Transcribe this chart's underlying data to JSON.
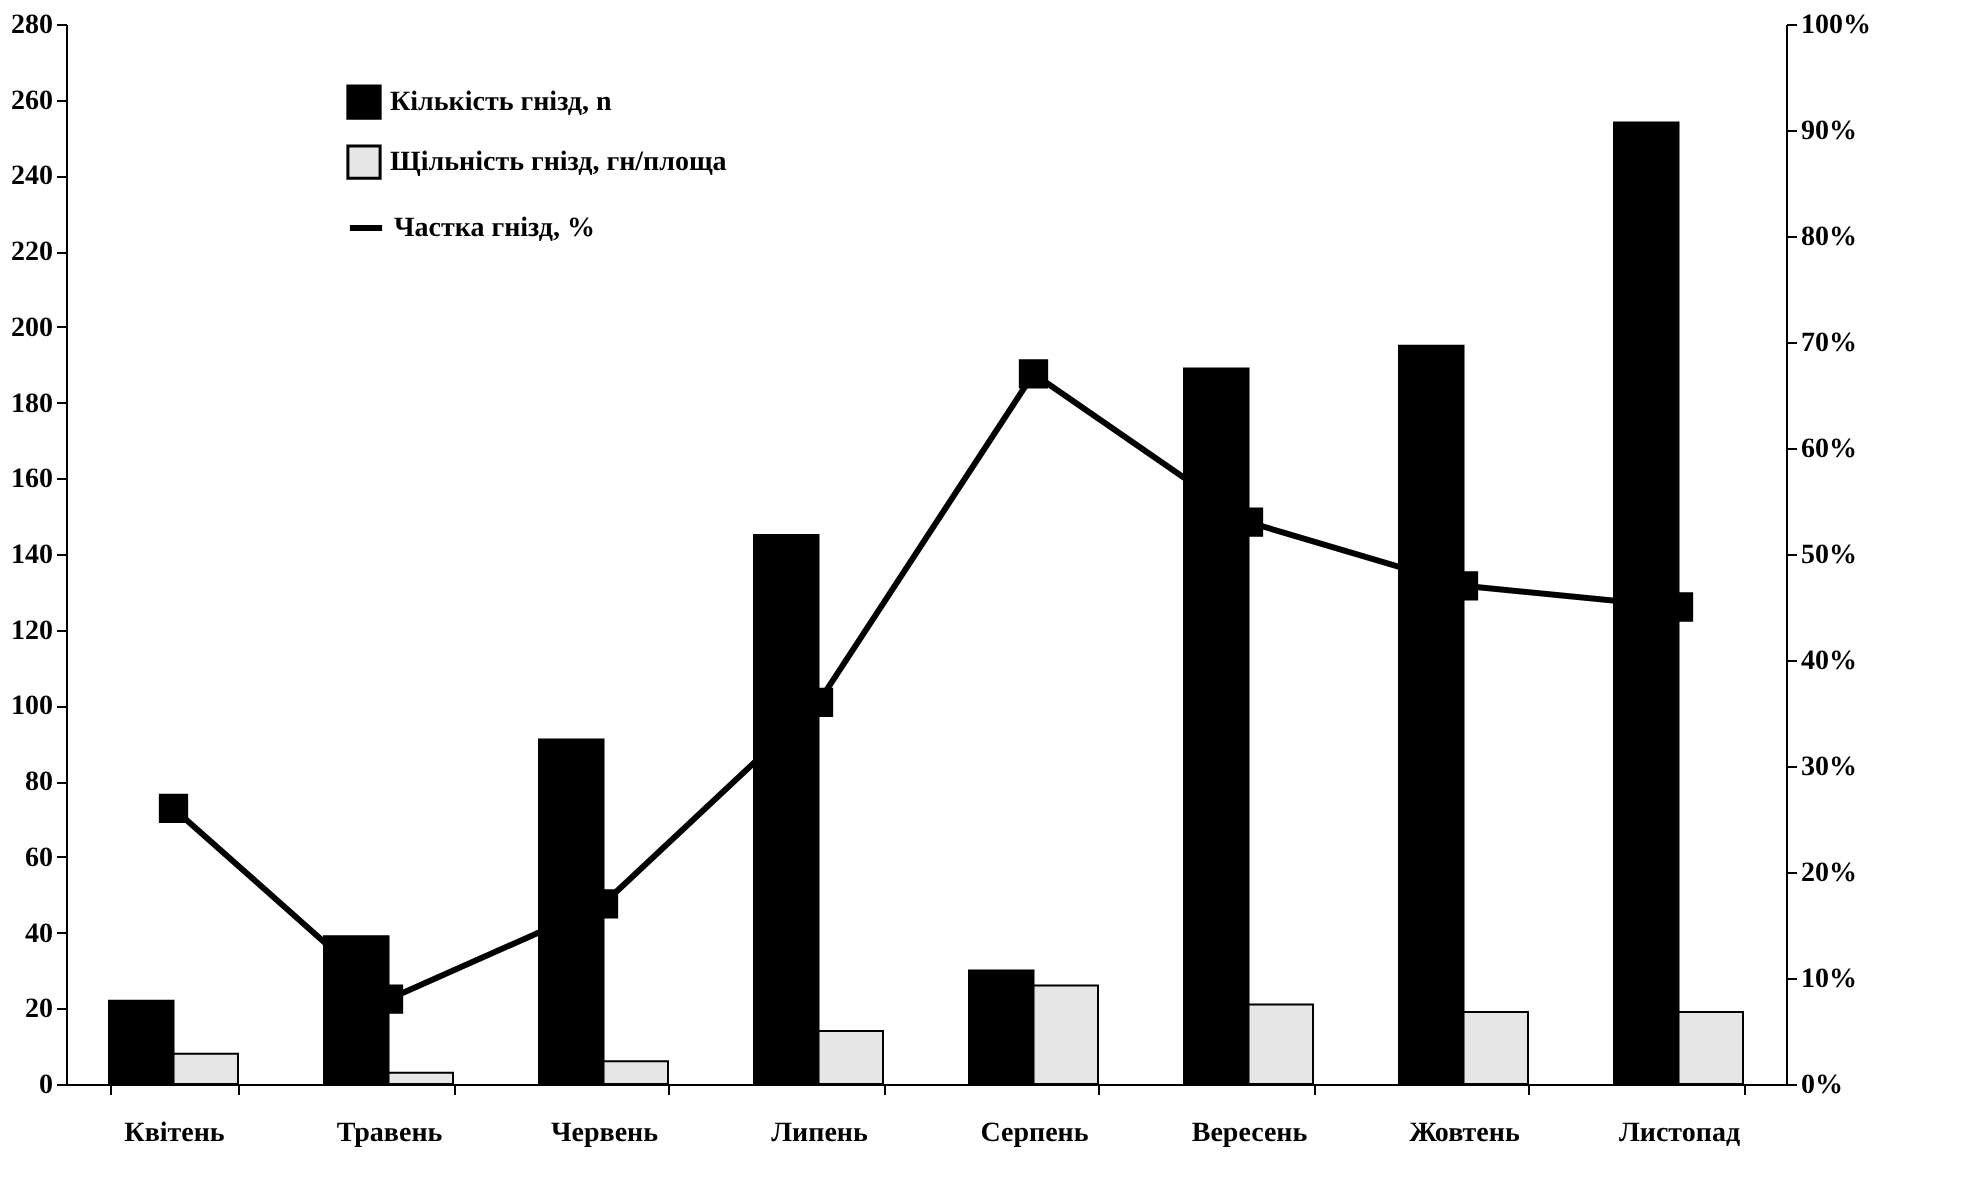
{
  "chart_data": {
    "type": "bar",
    "categories": [
      "Квітень",
      "Травень",
      "Червень",
      "Липень",
      "Серпень",
      "Вересень",
      "Жовтень",
      "Листопад"
    ],
    "series": [
      {
        "name": "Кількість гнізд, n",
        "color": "#000000",
        "values": [
          22,
          39,
          91,
          145,
          30,
          189,
          195,
          254
        ]
      },
      {
        "name": "Щільність гнізд, гн/площа",
        "color": "#e6e6e6",
        "values": [
          8,
          3,
          6,
          14,
          26,
          21,
          19,
          19
        ]
      },
      {
        "name": "Частка гнізд, %",
        "color": "#000000",
        "type": "line",
        "axis": "y2",
        "marker": "square",
        "line_style": "solid",
        "values": [
          26,
          8,
          17,
          36,
          67,
          53,
          47,
          45
        ]
      }
    ],
    "ylim": [
      0,
      280
    ],
    "yticks": [
      0,
      20,
      40,
      60,
      80,
      100,
      120,
      140,
      160,
      180,
      200,
      220,
      240,
      260,
      280
    ],
    "y2lim": [
      0,
      100
    ],
    "y2ticks": [
      {
        "value": 0,
        "label": "0%"
      },
      {
        "value": 10,
        "label": "10%"
      },
      {
        "value": 20,
        "label": "20%"
      },
      {
        "value": 30,
        "label": "30%"
      },
      {
        "value": 40,
        "label": "40%"
      },
      {
        "value": 50,
        "label": "50%"
      },
      {
        "value": 60,
        "label": "60%"
      },
      {
        "value": 70,
        "label": "70%"
      },
      {
        "value": 80,
        "label": "80%"
      },
      {
        "value": 90,
        "label": "90%"
      },
      {
        "value": 100,
        "label": "100%"
      }
    ],
    "legend": "top left",
    "grid": false
  }
}
